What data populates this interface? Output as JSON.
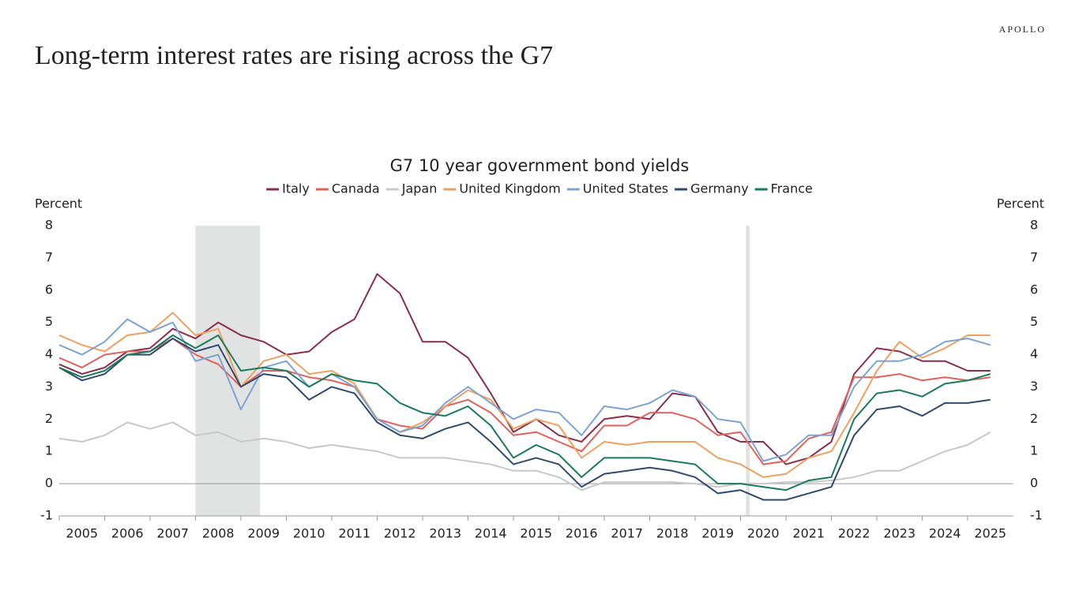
{
  "brand": "APOLLO",
  "headline": "Long-term interest rates are rising across the G7",
  "chart_data": {
    "type": "line",
    "title": "G7 10 year government bond yields",
    "y_label": "Percent",
    "y2_label": "Percent",
    "x": [
      2005,
      2005.5,
      2006,
      2006.5,
      2007,
      2007.5,
      2008,
      2008.5,
      2009,
      2009.5,
      2010,
      2010.5,
      2011,
      2011.5,
      2012,
      2012.5,
      2013,
      2013.5,
      2014,
      2014.5,
      2015,
      2015.5,
      2016,
      2016.5,
      2017,
      2017.5,
      2018,
      2018.5,
      2019,
      2019.5,
      2020,
      2020.5,
      2021,
      2021.5,
      2022,
      2022.5,
      2023,
      2023.5,
      2024,
      2024.5,
      2025,
      2025.5
    ],
    "xlim": [
      2005,
      2026
    ],
    "xticks": [
      2005,
      2006,
      2007,
      2008,
      2009,
      2010,
      2011,
      2012,
      2013,
      2014,
      2015,
      2016,
      2017,
      2018,
      2019,
      2020,
      2021,
      2022,
      2023,
      2024,
      2025
    ],
    "ylim": [
      -1,
      8
    ],
    "yticks": [
      -1,
      0,
      1,
      2,
      3,
      4,
      5,
      6,
      7,
      8
    ],
    "y2lim": [
      -1,
      8
    ],
    "y2ticks": [
      -1,
      0,
      1,
      2,
      3,
      4,
      5,
      6,
      7,
      8
    ],
    "recessions": [
      [
        2008.0,
        2009.42
      ],
      [
        2020.12,
        2020.2
      ]
    ],
    "recession_color": "#e1e2e2",
    "series": [
      {
        "name": "Italy",
        "color": "#8b2e4a",
        "values": [
          3.7,
          3.4,
          3.6,
          4.1,
          4.2,
          4.8,
          4.5,
          5.0,
          4.6,
          4.4,
          4.0,
          4.1,
          4.7,
          5.1,
          6.5,
          5.9,
          4.4,
          4.4,
          3.9,
          2.8,
          1.6,
          2.0,
          1.5,
          1.3,
          2.0,
          2.1,
          2.0,
          2.8,
          2.7,
          1.6,
          1.3,
          1.3,
          0.6,
          0.8,
          1.3,
          3.4,
          4.2,
          4.1,
          3.8,
          3.8,
          3.5,
          3.5
        ]
      },
      {
        "name": "Canada",
        "color": "#e0625a",
        "values": [
          3.9,
          3.6,
          4.0,
          4.1,
          4.1,
          4.5,
          4.0,
          3.7,
          3.0,
          3.5,
          3.5,
          3.3,
          3.2,
          3.0,
          2.0,
          1.8,
          1.7,
          2.4,
          2.6,
          2.2,
          1.5,
          1.6,
          1.3,
          1.0,
          1.8,
          1.8,
          2.2,
          2.2,
          2.0,
          1.5,
          1.6,
          0.6,
          0.7,
          1.4,
          1.6,
          3.3,
          3.3,
          3.4,
          3.2,
          3.3,
          3.2,
          3.3
        ]
      },
      {
        "name": "Japan",
        "color": "#c8c8c8",
        "values": [
          1.4,
          1.3,
          1.5,
          1.9,
          1.7,
          1.9,
          1.5,
          1.6,
          1.3,
          1.4,
          1.3,
          1.1,
          1.2,
          1.1,
          1.0,
          0.8,
          0.8,
          0.8,
          0.7,
          0.6,
          0.4,
          0.4,
          0.2,
          -0.2,
          0.05,
          0.05,
          0.05,
          0.05,
          0.0,
          -0.1,
          0.0,
          0.0,
          0.05,
          0.05,
          0.1,
          0.2,
          0.4,
          0.4,
          0.7,
          1.0,
          1.2,
          1.6
        ]
      },
      {
        "name": "United Kingdom",
        "color": "#f0a060",
        "values": [
          4.6,
          4.3,
          4.1,
          4.6,
          4.7,
          5.3,
          4.6,
          4.8,
          3.0,
          3.8,
          4.0,
          3.4,
          3.5,
          3.1,
          2.0,
          1.6,
          1.9,
          2.4,
          2.9,
          2.6,
          1.7,
          2.0,
          1.8,
          0.8,
          1.3,
          1.2,
          1.3,
          1.3,
          1.3,
          0.8,
          0.6,
          0.2,
          0.3,
          0.8,
          1.0,
          2.2,
          3.5,
          4.4,
          3.9,
          4.2,
          4.6,
          4.6
        ]
      },
      {
        "name": "United States",
        "color": "#7ba3d6",
        "values": [
          4.3,
          4.0,
          4.4,
          5.1,
          4.7,
          5.0,
          3.8,
          4.0,
          2.3,
          3.6,
          3.8,
          3.0,
          3.4,
          3.0,
          2.0,
          1.6,
          1.8,
          2.5,
          3.0,
          2.5,
          2.0,
          2.3,
          2.2,
          1.5,
          2.4,
          2.3,
          2.5,
          2.9,
          2.7,
          2.0,
          1.9,
          0.7,
          0.9,
          1.5,
          1.5,
          3.0,
          3.8,
          3.8,
          4.0,
          4.4,
          4.5,
          4.3
        ]
      },
      {
        "name": "Germany",
        "color": "#2f4a6e",
        "values": [
          3.6,
          3.2,
          3.4,
          4.0,
          4.0,
          4.5,
          4.1,
          4.3,
          3.0,
          3.4,
          3.3,
          2.6,
          3.0,
          2.8,
          1.9,
          1.5,
          1.4,
          1.7,
          1.9,
          1.3,
          0.6,
          0.8,
          0.6,
          -0.1,
          0.3,
          0.4,
          0.5,
          0.4,
          0.2,
          -0.3,
          -0.2,
          -0.5,
          -0.5,
          -0.3,
          -0.1,
          1.5,
          2.3,
          2.4,
          2.1,
          2.5,
          2.5,
          2.6
        ]
      },
      {
        "name": "France",
        "color": "#1a7a5e",
        "values": [
          3.6,
          3.3,
          3.5,
          4.0,
          4.1,
          4.6,
          4.2,
          4.6,
          3.5,
          3.6,
          3.5,
          3.0,
          3.4,
          3.2,
          3.1,
          2.5,
          2.2,
          2.1,
          2.4,
          1.8,
          0.8,
          1.2,
          0.9,
          0.2,
          0.8,
          0.8,
          0.8,
          0.7,
          0.6,
          0.0,
          0.0,
          -0.1,
          -0.2,
          0.1,
          0.2,
          2.0,
          2.8,
          2.9,
          2.7,
          3.1,
          3.2,
          3.4
        ]
      }
    ]
  }
}
